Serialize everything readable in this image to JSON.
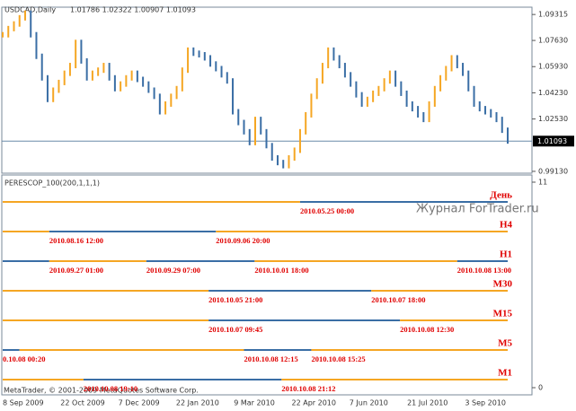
{
  "chart_data": [
    {
      "type": "price-bars",
      "title": "USDCAD,Daily",
      "ohlc_text": "1.01786 1.02322 1.00907 1.01093",
      "up_color": "#f5a623",
      "down_color": "#3a6ea5",
      "values": [
        1.08,
        1.084,
        1.087,
        1.091,
        1.094,
        1.08,
        1.066,
        1.052,
        1.038,
        1.044,
        1.049,
        1.055,
        1.06,
        1.075,
        1.063,
        1.052,
        1.055,
        1.057,
        1.06,
        1.052,
        1.045,
        1.048,
        1.052,
        1.055,
        1.051,
        1.048,
        1.044,
        1.04,
        1.03,
        1.035,
        1.04,
        1.045,
        1.057,
        1.07,
        1.068,
        1.067,
        1.065,
        1.061,
        1.058,
        1.054,
        1.05,
        1.03,
        1.023,
        1.017,
        1.01,
        1.025,
        1.017,
        1.008,
        1.0,
        0.997,
        0.995,
        1.0,
        1.005,
        1.017,
        1.028,
        1.04,
        1.05,
        1.06,
        1.07,
        1.065,
        1.06,
        1.054,
        1.048,
        1.041,
        1.035,
        1.038,
        1.042,
        1.045,
        1.05,
        1.055,
        1.048,
        1.042,
        1.035,
        1.032,
        1.028,
        1.025,
        1.035,
        1.045,
        1.052,
        1.058,
        1.065,
        1.06,
        1.055,
        1.045,
        1.035,
        1.032,
        1.03,
        1.028,
        1.025,
        1.018,
        1.011
      ],
      "xlim": [
        0,
        90
      ],
      "ylim": [
        0.9901,
        1.0979
      ],
      "yticks": [
        {
          "value": 1.09315,
          "label": "1.09315"
        },
        {
          "value": 1.0763,
          "label": "1.07630"
        },
        {
          "value": 1.0593,
          "label": "1.05930"
        },
        {
          "value": 1.0423,
          "label": "1.04230"
        },
        {
          "value": 1.0253,
          "label": "1.02530"
        },
        {
          "value": 0.9913,
          "label": "0.99130"
        }
      ],
      "last_price": 1.01093,
      "x_labels": [
        "8 Sep 2009",
        "22 Oct 2009",
        "7 Dec 2009",
        "22 Jan 2010",
        "9 Mar 2010",
        "22 Apr 2010",
        "7 Jun 2010",
        "21 Jul 2010",
        "3 Sep 2010"
      ]
    },
    {
      "type": "indicator",
      "title": "PERESCOP_100(200,1,1,1)",
      "xlim": [
        0,
        90
      ],
      "ylim": [
        0,
        11
      ],
      "yticks": [
        11,
        0
      ],
      "rows": [
        {
          "name": "День",
          "segments": [
            {
              "from": 0,
              "to": 53,
              "color": "#f5a623"
            },
            {
              "from": 53,
              "to": 90,
              "color": "#3a6ea5"
            }
          ],
          "labels": [
            {
              "at": 53,
              "text": "2010.05.25 00:00"
            }
          ]
        },
        {
          "name": "H4",
          "segments": [
            {
              "from": 0,
              "to": 8.3,
              "color": "#f5a623"
            },
            {
              "from": 8.3,
              "to": 38,
              "color": "#3a6ea5"
            },
            {
              "from": 38,
              "to": 90,
              "color": "#f5a623"
            }
          ],
          "labels": [
            {
              "at": 8.3,
              "text": "2010.08.16 12:00"
            },
            {
              "at": 38,
              "text": "2010.09.06 20:00"
            }
          ]
        },
        {
          "name": "H1",
          "segments": [
            {
              "from": 0,
              "to": 8.3,
              "color": "#3a6ea5"
            },
            {
              "from": 8.3,
              "to": 25.6,
              "color": "#f5a623"
            },
            {
              "from": 25.6,
              "to": 44.9,
              "color": "#3a6ea5"
            },
            {
              "from": 44.9,
              "to": 81,
              "color": "#f5a623"
            },
            {
              "from": 81,
              "to": 90,
              "color": "#3a6ea5"
            }
          ],
          "labels": [
            {
              "at": 8.3,
              "text": "2010.09.27 01:00"
            },
            {
              "at": 25.6,
              "text": "2010.09.29 07:00"
            },
            {
              "at": 44.9,
              "text": "2010.10.01 18:00"
            },
            {
              "at": 81,
              "text": "2010.10.08 13:00"
            }
          ]
        },
        {
          "name": "M30",
          "segments": [
            {
              "from": 0,
              "to": 36.7,
              "color": "#f5a623"
            },
            {
              "from": 36.7,
              "to": 65.7,
              "color": "#3a6ea5"
            },
            {
              "from": 65.7,
              "to": 90,
              "color": "#f5a623"
            }
          ],
          "labels": [
            {
              "at": 36.7,
              "text": "2010.10.05 21:00"
            },
            {
              "at": 65.7,
              "text": "2010.10.07 18:00"
            }
          ]
        },
        {
          "name": "M15",
          "segments": [
            {
              "from": 0,
              "to": 36.7,
              "color": "#f5a623"
            },
            {
              "from": 36.7,
              "to": 70.8,
              "color": "#3a6ea5"
            },
            {
              "from": 70.8,
              "to": 90,
              "color": "#f5a623"
            }
          ],
          "labels": [
            {
              "at": 36.7,
              "text": "2010.10.07 09:45"
            },
            {
              "at": 70.8,
              "text": "2010.10.08 12:30"
            }
          ]
        },
        {
          "name": "M5",
          "segments": [
            {
              "from": 0,
              "to": 3,
              "color": "#3a6ea5"
            },
            {
              "from": 3,
              "to": 43,
              "color": "#f5a623"
            },
            {
              "from": 43,
              "to": 55,
              "color": "#3a6ea5"
            },
            {
              "from": 55,
              "to": 90,
              "color": "#f5a623"
            }
          ],
          "labels": [
            {
              "at": 0,
              "text": "0.10.08 00:20"
            },
            {
              "at": 43,
              "text": "2010.10.08 12:15"
            },
            {
              "at": 55,
              "text": "2010.10.08 15:25"
            }
          ]
        },
        {
          "name": "M1",
          "segments": [
            {
              "from": 0,
              "to": 14.4,
              "color": "#f5a623"
            },
            {
              "from": 14.4,
              "to": 49.7,
              "color": "#3a6ea5"
            },
            {
              "from": 49.7,
              "to": 90,
              "color": "#f5a623"
            }
          ],
          "labels": [
            {
              "at": 14.4,
              "text": "2010.10.08 19:10"
            },
            {
              "at": 49.7,
              "text": "2010.10.08 21:12"
            }
          ]
        }
      ]
    }
  ],
  "watermark": "Журнал ForTrader.ru",
  "copyright": "MetaTrader, © 2001-2009 MetaQuotes Software Corp."
}
